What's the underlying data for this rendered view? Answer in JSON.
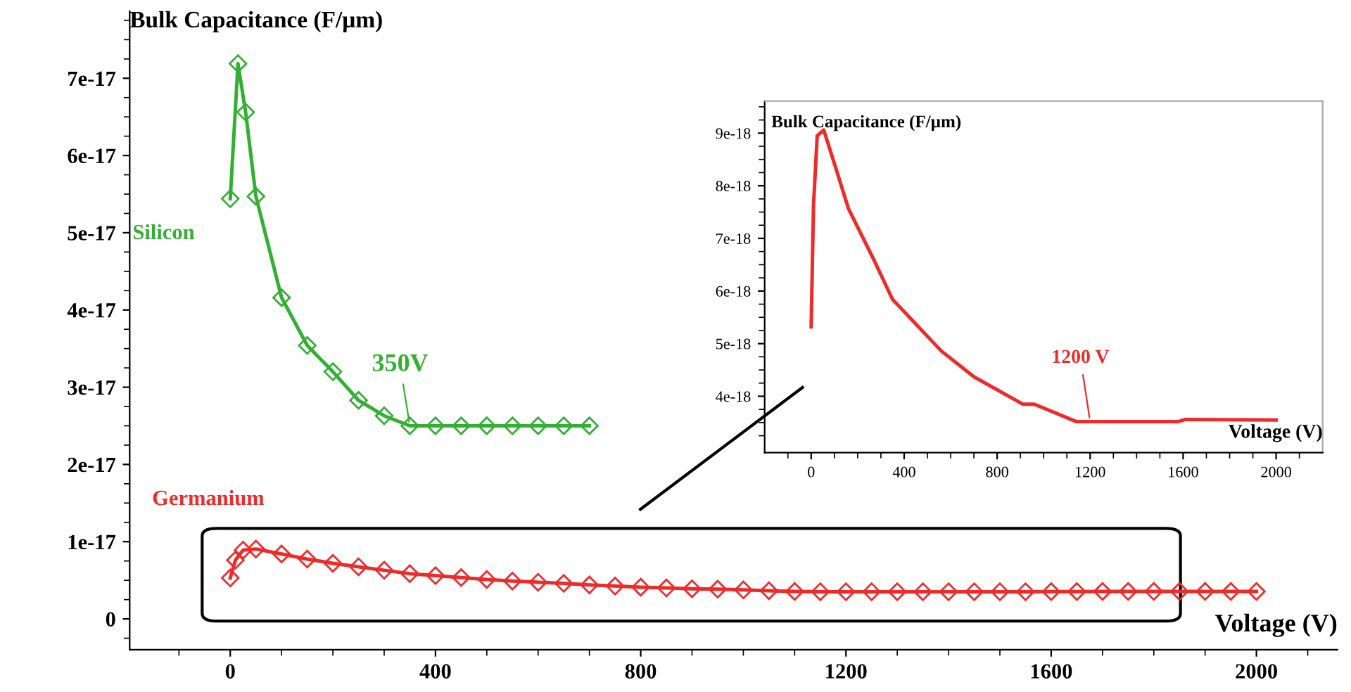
{
  "chart_data": [
    {
      "type": "line",
      "xlabel": "Voltage (V)",
      "ylabel": "Bulk Capacitance (F/µm)",
      "marker": "diamond",
      "grid": false,
      "legend": false,
      "xlim": [
        -196,
        2158
      ],
      "ylim": [
        -4e-18,
        7.87e-17
      ],
      "xticks": [
        0,
        400,
        800,
        1200,
        1600,
        2000,
        {
          "value": -100,
          "label": null
        },
        {
          "value": 100,
          "label": null
        },
        {
          "value": 200,
          "label": null
        },
        {
          "value": 300,
          "label": null
        },
        {
          "value": 500,
          "label": null
        },
        {
          "value": 600,
          "label": null
        },
        {
          "value": 700,
          "label": null
        },
        {
          "value": 900,
          "label": null
        },
        {
          "value": 1000,
          "label": null
        },
        {
          "value": 1100,
          "label": null
        },
        {
          "value": 1300,
          "label": null
        },
        {
          "value": 1400,
          "label": null
        },
        {
          "value": 1500,
          "label": null
        },
        {
          "value": 1700,
          "label": null
        },
        {
          "value": 1800,
          "label": null
        },
        {
          "value": 1900,
          "label": null
        },
        {
          "value": 2100,
          "label": null
        }
      ],
      "yticks": [
        0,
        1e-17,
        2e-17,
        3e-17,
        4e-17,
        5e-17,
        6e-17,
        7e-17,
        {
          "value": -2.5e-18,
          "label": null
        },
        {
          "value": 2.5e-18,
          "label": null
        },
        {
          "value": 5e-18,
          "label": null
        },
        {
          "value": 7.5e-18,
          "label": null
        },
        {
          "value": 1.25e-17,
          "label": null
        },
        {
          "value": 1.5e-17,
          "label": null
        },
        {
          "value": 1.75e-17,
          "label": null
        },
        {
          "value": 2.25e-17,
          "label": null
        },
        {
          "value": 2.5e-17,
          "label": null
        },
        {
          "value": 2.75e-17,
          "label": null
        },
        {
          "value": 3.25e-17,
          "label": null
        },
        {
          "value": 3.5e-17,
          "label": null
        },
        {
          "value": 3.75e-17,
          "label": null
        },
        {
          "value": 4.25e-17,
          "label": null
        },
        {
          "value": 4.5e-17,
          "label": null
        },
        {
          "value": 4.75e-17,
          "label": null
        },
        {
          "value": 5.25e-17,
          "label": null
        },
        {
          "value": 5.5e-17,
          "label": null
        },
        {
          "value": 5.75e-17,
          "label": null
        },
        {
          "value": 6.25e-17,
          "label": null
        },
        {
          "value": 6.5e-17,
          "label": null
        },
        {
          "value": 6.75e-17,
          "label": null
        },
        {
          "value": 7.25e-17,
          "label": null
        },
        {
          "value": 7.5e-17,
          "label": null
        },
        {
          "value": 7.75e-17,
          "label": null
        }
      ],
      "annotations": [
        {
          "text": "350V",
          "x": 350,
          "y": 2.5e-17
        }
      ],
      "series": [
        {
          "name": "Silicon",
          "color": "#33b033",
          "x": [
            0,
            15,
            30,
            50,
            100,
            150,
            200,
            250,
            300,
            350,
            400,
            450,
            500,
            550,
            600,
            650,
            700
          ],
          "values": [
            5.44e-17,
            7.19e-17,
            6.56e-17,
            5.47e-17,
            4.16e-17,
            3.54e-17,
            3.2e-17,
            2.83e-17,
            2.63e-17,
            2.5e-17,
            2.5e-17,
            2.5e-17,
            2.5e-17,
            2.5e-17,
            2.5e-17,
            2.5e-17,
            2.5e-17
          ]
        },
        {
          "name": "Germanium",
          "color": "#ee2a2a",
          "x": [
            0,
            10,
            25,
            50,
            100,
            150,
            200,
            250,
            300,
            350,
            400,
            450,
            500,
            550,
            600,
            650,
            700,
            750,
            800,
            850,
            900,
            950,
            1000,
            1050,
            1100,
            1150,
            1200,
            1250,
            1300,
            1350,
            1400,
            1450,
            1500,
            1550,
            1600,
            1650,
            1700,
            1750,
            1800,
            1850,
            1900,
            1950,
            2000
          ],
          "values": [
            5.3e-18,
            7.6e-18,
            8.9e-18,
            9.05e-18,
            8.4e-18,
            7.75e-18,
            7.2e-18,
            6.75e-18,
            6.3e-18,
            5.85e-18,
            5.6e-18,
            5.35e-18,
            5.1e-18,
            4.9e-18,
            4.75e-18,
            4.6e-18,
            4.4e-18,
            4.25e-18,
            4.1e-18,
            4e-18,
            3.9e-18,
            3.85e-18,
            3.75e-18,
            3.65e-18,
            3.55e-18,
            3.52e-18,
            3.52e-18,
            3.52e-18,
            3.52e-18,
            3.52e-18,
            3.52e-18,
            3.52e-18,
            3.52e-18,
            3.52e-18,
            3.53e-18,
            3.54e-18,
            3.55e-18,
            3.55e-18,
            3.55e-18,
            3.55e-18,
            3.55e-18,
            3.55e-18,
            3.55e-18
          ]
        }
      ]
    },
    {
      "type": "line",
      "xlabel": "Voltage (V)",
      "ylabel": "Bulk Capacitance (F/µm)",
      "marker": "none",
      "grid": false,
      "legend": false,
      "xlim": [
        -200,
        2200
      ],
      "ylim": [
        2.93e-18,
        9.61e-18
      ],
      "xticks": [
        0,
        400,
        800,
        1200,
        1600,
        2000,
        {
          "value": -100,
          "label": null
        },
        {
          "value": 100,
          "label": null
        },
        {
          "value": 200,
          "label": null
        },
        {
          "value": 300,
          "label": null
        },
        {
          "value": 500,
          "label": null
        },
        {
          "value": 600,
          "label": null
        },
        {
          "value": 700,
          "label": null
        },
        {
          "value": 900,
          "label": null
        },
        {
          "value": 1000,
          "label": null
        },
        {
          "value": 1100,
          "label": null
        },
        {
          "value": 1300,
          "label": null
        },
        {
          "value": 1400,
          "label": null
        },
        {
          "value": 1500,
          "label": null
        },
        {
          "value": 1700,
          "label": null
        },
        {
          "value": 1800,
          "label": null
        },
        {
          "value": 1900,
          "label": null
        },
        {
          "value": 2100,
          "label": null
        }
      ],
      "yticks": [
        4e-18,
        5e-18,
        6e-18,
        7e-18,
        8e-18,
        9e-18,
        {
          "value": 3.25e-18,
          "label": null
        },
        {
          "value": 3.5e-18,
          "label": null
        },
        {
          "value": 3.75e-18,
          "label": null
        },
        {
          "value": 4.25e-18,
          "label": null
        },
        {
          "value": 4.5e-18,
          "label": null
        },
        {
          "value": 4.75e-18,
          "label": null
        },
        {
          "value": 5.25e-18,
          "label": null
        },
        {
          "value": 5.5e-18,
          "label": null
        },
        {
          "value": 5.75e-18,
          "label": null
        },
        {
          "value": 6.25e-18,
          "label": null
        },
        {
          "value": 6.5e-18,
          "label": null
        },
        {
          "value": 6.75e-18,
          "label": null
        },
        {
          "value": 7.25e-18,
          "label": null
        },
        {
          "value": 7.5e-18,
          "label": null
        },
        {
          "value": 7.75e-18,
          "label": null
        },
        {
          "value": 8.25e-18,
          "label": null
        },
        {
          "value": 8.5e-18,
          "label": null
        },
        {
          "value": 8.75e-18,
          "label": null
        },
        {
          "value": 9.25e-18,
          "label": null
        },
        {
          "value": 9.5e-18,
          "label": null
        }
      ],
      "annotations": [
        {
          "text": "1200 V",
          "x": 1200,
          "y": 3.52e-18
        }
      ],
      "series": [
        {
          "color": "#ee2a2a",
          "x": [
            0,
            10,
            26,
            54,
            100,
            160,
            270,
            350,
            560,
            700,
            910,
            960,
            1140,
            1580,
            1610,
            2000
          ],
          "values": [
            5.32e-18,
            7.62e-18,
            8.95e-18,
            9.06e-18,
            8.42e-18,
            7.57e-18,
            6.59e-18,
            5.84e-18,
            4.86e-18,
            4.37e-18,
            3.85e-18,
            3.85e-18,
            3.52e-18,
            3.52e-18,
            3.56e-18,
            3.55e-18
          ]
        }
      ]
    }
  ]
}
